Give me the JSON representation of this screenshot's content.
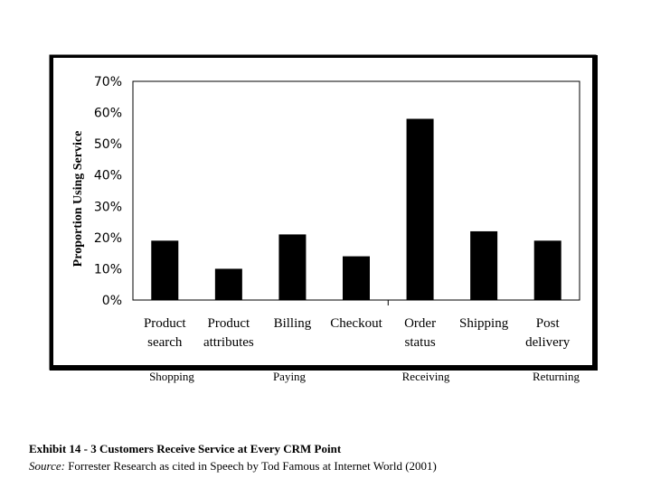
{
  "chart_data": {
    "type": "bar",
    "categories": [
      [
        "Product",
        "search"
      ],
      [
        "Product",
        "attributes"
      ],
      [
        "Billing"
      ],
      [
        "Checkout"
      ],
      [
        "Order",
        "status"
      ],
      [
        "Shipping"
      ],
      [
        "Post",
        "delivery"
      ]
    ],
    "values": [
      0.19,
      0.1,
      0.21,
      0.14,
      0.58,
      0.22,
      0.19
    ],
    "ylim": [
      0,
      0.7
    ],
    "yticks": [
      "0%",
      "10%",
      "20%",
      "30%",
      "40%",
      "50%",
      "60%",
      "70%"
    ],
    "ylabel": "Proportion Using Service",
    "grid": false,
    "bar_color": "#000000",
    "stages": [
      {
        "label": "Shopping"
      },
      {
        "label": "Paying"
      },
      {
        "label": "Receiving"
      },
      {
        "label": "Returning"
      }
    ]
  },
  "caption": {
    "title": "Exhibit 14 - 3 Customers Receive Service at Every CRM Point",
    "source_label": "Source:",
    "source_text": " Forrester Research as cited in Speech by Tod Famous at Internet World (2001)"
  }
}
